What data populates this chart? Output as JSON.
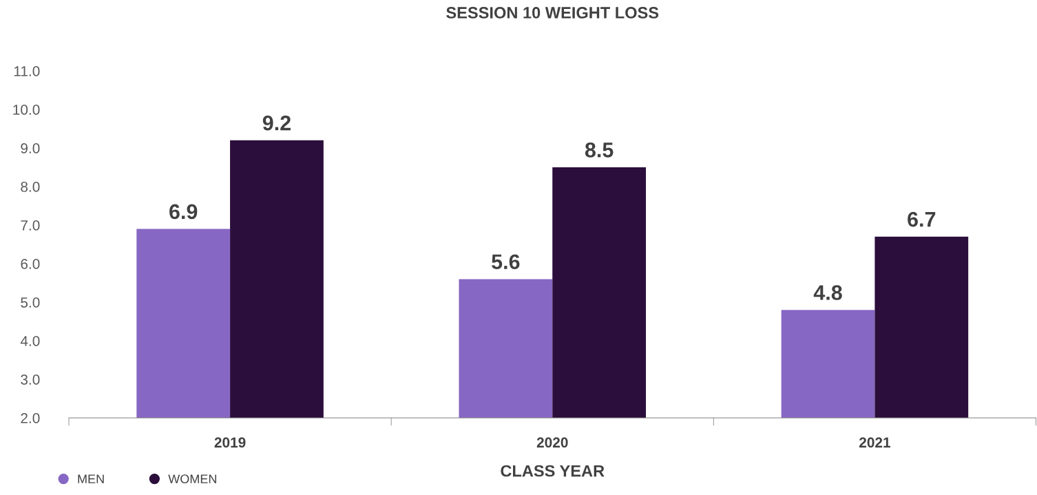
{
  "chart_data": {
    "type": "bar",
    "title": "SESSION 10 WEIGHT LOSS",
    "xlabel": "CLASS YEAR",
    "categories": [
      "2019",
      "2020",
      "2021"
    ],
    "series": [
      {
        "name": "MEN",
        "color": "#8767c4",
        "values": [
          6.9,
          5.6,
          4.8
        ]
      },
      {
        "name": "WOMEN",
        "color": "#2b0e3b",
        "values": [
          9.2,
          8.5,
          6.7
        ]
      }
    ],
    "ylim": [
      2,
      11
    ],
    "yticks": [
      {
        "value": 2,
        "label": "2.0"
      },
      {
        "value": 3,
        "label": "3.0"
      },
      {
        "value": 4,
        "label": "4.0"
      },
      {
        "value": 5,
        "label": "5.0"
      },
      {
        "value": 6,
        "label": "6.0"
      },
      {
        "value": 7,
        "label": "7.0"
      },
      {
        "value": 8,
        "label": "8.0"
      },
      {
        "value": 9,
        "label": "9.0"
      },
      {
        "value": 10,
        "label": "10.0"
      },
      {
        "value": 11,
        "label": "11.0"
      }
    ],
    "data_labels": true,
    "legend": "bottom left",
    "grid": false
  }
}
